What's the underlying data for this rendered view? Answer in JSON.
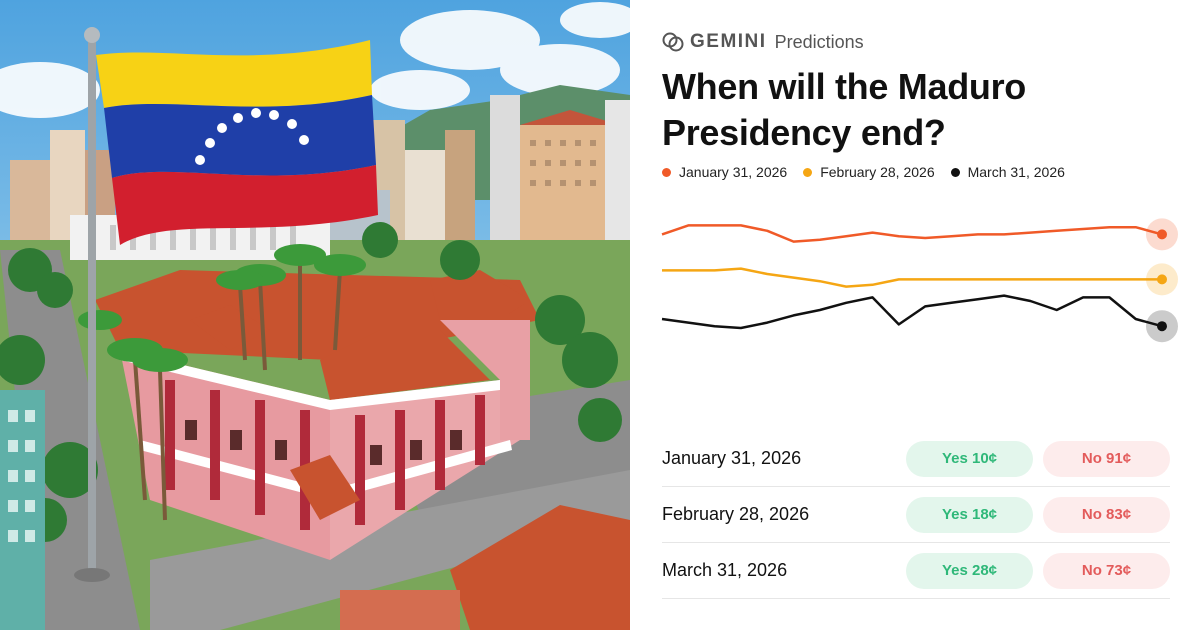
{
  "brand": {
    "name": "GEMINI",
    "product": "Predictions"
  },
  "title": "When will the Maduro Presidency end?",
  "colors": {
    "series_1": "#f05a28",
    "series_2": "#f5a614",
    "series_3": "#111111",
    "yes": "#2fb879",
    "no": "#e35b5b"
  },
  "markets": [
    {
      "label": "January 31, 2026",
      "yes": "Yes 10¢",
      "no": "No 91¢"
    },
    {
      "label": "February 28, 2026",
      "yes": "Yes 18¢",
      "no": "No 83¢"
    },
    {
      "label": "March 31, 2026",
      "yes": "Yes 28¢",
      "no": "No 73¢"
    }
  ],
  "chart_data": {
    "type": "line",
    "legend_position": "top-left",
    "grid": false,
    "axes_visible": false,
    "ylim": [
      0,
      100
    ],
    "x": [
      0,
      1,
      2,
      3,
      4,
      5,
      6,
      7,
      8,
      9,
      10,
      11,
      12,
      13,
      14,
      15,
      16,
      17,
      18,
      19
    ],
    "series": [
      {
        "name": "January 31, 2026",
        "color": "#f05a28",
        "values": [
          92,
          97,
          97,
          97,
          94,
          88,
          89,
          91,
          93,
          91,
          90,
          91,
          92,
          92,
          93,
          94,
          95,
          96,
          96,
          92
        ]
      },
      {
        "name": "February 28, 2026",
        "color": "#f5a614",
        "values": [
          72,
          72,
          72,
          73,
          70,
          68,
          66,
          63,
          64,
          67,
          67,
          67,
          67,
          67,
          67,
          67,
          67,
          67,
          67,
          67
        ]
      },
      {
        "name": "March 31, 2026",
        "color": "#111111",
        "values": [
          45,
          43,
          41,
          40,
          43,
          47,
          50,
          54,
          57,
          42,
          52,
          54,
          56,
          58,
          55,
          50,
          57,
          57,
          45,
          41
        ]
      }
    ]
  }
}
